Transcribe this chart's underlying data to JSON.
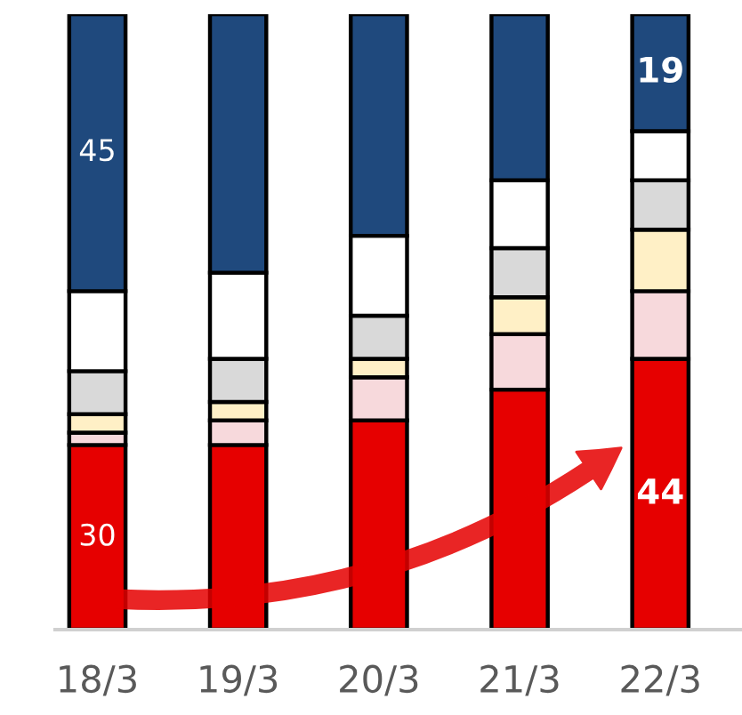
{
  "chart_data": {
    "type": "bar",
    "stacked": true,
    "categories": [
      "18/3",
      "19/3",
      "20/3",
      "21/3",
      "22/3"
    ],
    "ylim": [
      0,
      100
    ],
    "tick_labels": "x",
    "series": [
      {
        "color": "#e60000",
        "values": [
          30,
          30,
          34,
          39,
          44
        ],
        "value_labels": [
          "30",
          null,
          null,
          null,
          "44"
        ]
      },
      {
        "color": "#f7d9dc",
        "values": [
          2,
          4,
          7,
          9,
          11
        ]
      },
      {
        "color": "#fff0c6",
        "values": [
          3,
          3,
          3,
          6,
          10
        ]
      },
      {
        "color": "#d9d9d9",
        "values": [
          7,
          7,
          7,
          8,
          8
        ]
      },
      {
        "color": "#ffffff",
        "values": [
          13,
          14,
          13,
          11,
          8
        ]
      },
      {
        "color": "#1f497d",
        "values": [
          45,
          42,
          36,
          27,
          19
        ],
        "value_labels": [
          "45",
          null,
          null,
          null,
          "19"
        ]
      }
    ]
  }
}
